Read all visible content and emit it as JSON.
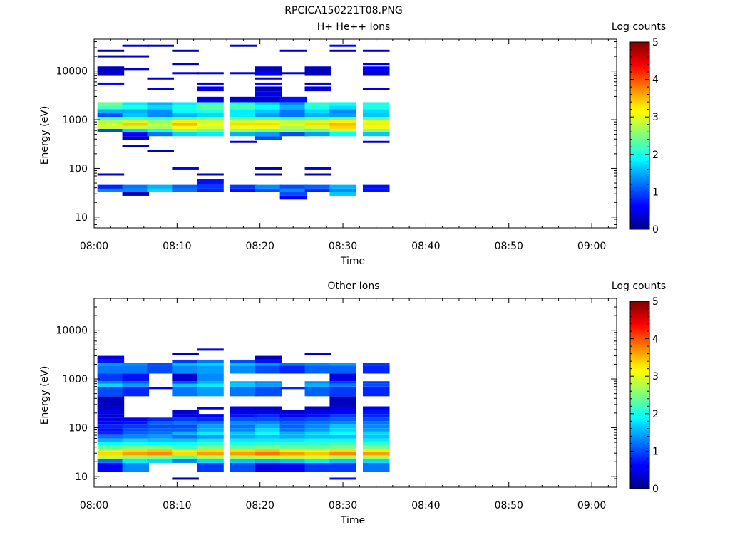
{
  "figure_title": "RPCICA150221T08.PNG",
  "chart_data": [
    {
      "type": "heatmap",
      "title": "H+ He++ Ions",
      "xlabel": "Time",
      "ylabel": "Energy (eV)",
      "y_scale": "log",
      "ylim": [
        6,
        45000
      ],
      "xlim": [
        "08:00",
        "09:03"
      ],
      "x_ticks": [
        "08:00",
        "08:10",
        "08:20",
        "08:30",
        "08:40",
        "08:50",
        "09:00"
      ],
      "y_ticks": [
        "10",
        "100",
        "1000",
        "10000"
      ],
      "colorbar": {
        "label": "Log counts",
        "min": 0,
        "max": 5,
        "ticks": [
          "0",
          "1",
          "2",
          "3",
          "4",
          "5"
        ],
        "colormap": "jet"
      },
      "time_bins": [
        "08:02",
        "08:05",
        "08:08",
        "08:11",
        "08:14",
        "08:18",
        "08:21",
        "08:24",
        "08:27",
        "08:30",
        "08:34"
      ],
      "bin_width_min": 3.2,
      "energy_bins_eV": [
        25,
        30,
        35,
        42,
        50,
        75,
        100,
        230,
        290,
        350,
        420,
        500,
        600,
        700,
        800,
        900,
        1050,
        1250,
        1500,
        1800,
        2100,
        2500,
        3500,
        4200,
        5500,
        7000,
        9000,
        11000,
        14000,
        20000,
        26000,
        33000
      ],
      "values": [
        [
          null,
          null,
          1.3,
          0.8,
          null,
          0.3,
          null,
          null,
          null,
          null,
          null,
          null,
          1.0,
          2.8,
          3.0,
          2.7,
          2.3,
          1.0,
          1.5,
          2.2,
          2.4,
          null,
          null,
          null,
          0.6,
          null,
          0.4,
          0.3,
          null,
          0.3,
          0.3,
          null
        ],
        [
          null,
          0.3,
          1.3,
          1.2,
          null,
          null,
          null,
          null,
          0.3,
          null,
          0.4,
          0.6,
          1.7,
          2.8,
          3.4,
          2.9,
          2.3,
          1.6,
          1.5,
          2.0,
          1.8,
          null,
          null,
          null,
          null,
          null,
          null,
          0.4,
          null,
          0.4,
          null,
          0.4
        ],
        [
          null,
          null,
          1.7,
          1.5,
          null,
          null,
          null,
          0.3,
          null,
          null,
          null,
          1.2,
          2.0,
          2.7,
          2.8,
          2.6,
          2.2,
          1.3,
          1.3,
          1.7,
          1.5,
          null,
          null,
          0.5,
          null,
          0.4,
          null,
          null,
          null,
          null,
          null,
          0.3
        ],
        [
          null,
          null,
          1.2,
          1.1,
          null,
          null,
          0.6,
          null,
          null,
          null,
          null,
          1.7,
          2.6,
          3.1,
          3.5,
          3.2,
          2.3,
          1.5,
          1.9,
          2.0,
          1.8,
          null,
          null,
          null,
          null,
          null,
          0.4,
          null,
          0.3,
          null,
          0.3,
          null
        ],
        [
          null,
          null,
          0.8,
          0.9,
          0.7,
          0.3,
          null,
          null,
          null,
          null,
          null,
          1.8,
          2.4,
          2.9,
          3.0,
          2.9,
          2.5,
          1.7,
          2.0,
          2.3,
          2.2,
          0.5,
          null,
          0.5,
          0.4,
          null,
          0.4,
          null,
          null,
          null,
          null,
          null
        ],
        [
          null,
          null,
          0.7,
          0.9,
          null,
          null,
          null,
          null,
          null,
          0.4,
          null,
          1.5,
          2.6,
          3.0,
          3.3,
          2.9,
          2.4,
          1.8,
          1.8,
          2.2,
          2.1,
          0.4,
          null,
          null,
          null,
          null,
          0.4,
          null,
          null,
          null,
          null,
          0.3
        ],
        [
          null,
          null,
          1.0,
          1.3,
          null,
          0.3,
          0.3,
          null,
          null,
          null,
          1.0,
          1.4,
          2.4,
          3.0,
          3.3,
          3.0,
          2.3,
          1.4,
          1.6,
          1.9,
          1.7,
          0.4,
          0.5,
          0.3,
          0.6,
          0.4,
          0.6,
          0.3,
          null,
          null,
          null,
          null
        ],
        [
          0.6,
          1.0,
          1.3,
          1.0,
          null,
          null,
          null,
          null,
          null,
          null,
          null,
          1.0,
          2.5,
          2.7,
          3.0,
          2.8,
          2.2,
          1.2,
          1.2,
          1.5,
          1.3,
          0.7,
          null,
          null,
          null,
          null,
          0.4,
          null,
          null,
          null,
          0.4,
          null
        ],
        [
          null,
          null,
          0.8,
          1.1,
          null,
          0.3,
          0.5,
          null,
          null,
          null,
          null,
          1.4,
          2.3,
          2.9,
          3.3,
          2.9,
          2.3,
          1.5,
          1.7,
          2.0,
          2.1,
          null,
          null,
          0.4,
          0.3,
          null,
          0.3,
          0.3,
          null,
          null,
          null,
          null
        ],
        [
          null,
          1.6,
          1.3,
          1.5,
          null,
          null,
          null,
          null,
          null,
          null,
          null,
          1.9,
          2.8,
          3.3,
          3.5,
          3.2,
          2.4,
          1.4,
          1.3,
          1.7,
          1.9,
          null,
          null,
          null,
          null,
          null,
          null,
          null,
          null,
          null,
          0.3,
          0.6
        ],
        [
          null,
          null,
          0.7,
          0.7,
          null,
          null,
          null,
          null,
          null,
          0.4,
          null,
          1.6,
          2.6,
          3.0,
          3.2,
          3.0,
          2.3,
          1.6,
          1.7,
          2.0,
          2.0,
          null,
          null,
          0.4,
          null,
          null,
          0.4,
          0.6,
          0.5,
          null,
          0.4,
          null
        ]
      ]
    },
    {
      "type": "heatmap",
      "title": "Other Ions",
      "xlabel": "Time",
      "ylabel": "Energy (eV)",
      "y_scale": "log",
      "ylim": [
        6,
        45000
      ],
      "xlim": [
        "08:00",
        "09:03"
      ],
      "x_ticks": [
        "08:00",
        "08:10",
        "08:20",
        "08:30",
        "08:40",
        "08:50",
        "09:00"
      ],
      "y_ticks": [
        "10",
        "100",
        "1000",
        "10000"
      ],
      "colorbar": {
        "label": "Log counts",
        "min": 0,
        "max": 5,
        "ticks": [
          "0",
          "1",
          "2",
          "3",
          "4",
          "5"
        ],
        "colormap": "jet"
      },
      "time_bins": [
        "08:02",
        "08:05",
        "08:08",
        "08:11",
        "08:14",
        "08:18",
        "08:21",
        "08:24",
        "08:27",
        "08:30",
        "08:34"
      ],
      "bin_width_min": 3.2,
      "energy_bins_eV": [
        9,
        17,
        21,
        25,
        29,
        34,
        40,
        47,
        55,
        65,
        77,
        90,
        106,
        125,
        148,
        175,
        210,
        250,
        300,
        650,
        750,
        850,
        950,
        1750,
        2000,
        2300,
        2700,
        3300,
        4000
      ],
      "values": [
        [
          null,
          0.6,
          1.2,
          2.8,
          3.3,
          2.9,
          2.4,
          1.9,
          1.5,
          1.2,
          0.8,
          0.7,
          0.8,
          0.6,
          0.5,
          0.4,
          0.5,
          0.4,
          0.3,
          1.0,
          1.7,
          1.3,
          0.9,
          1.2,
          1.4,
          0.7,
          0.5,
          null,
          null
        ],
        [
          null,
          1.3,
          1.8,
          2.6,
          3.6,
          3.3,
          2.5,
          2.0,
          1.7,
          1.3,
          1.1,
          1.0,
          0.9,
          0.7,
          0.6,
          null,
          null,
          null,
          null,
          0.8,
          1.4,
          1.1,
          0.7,
          1.2,
          1.3,
          null,
          null,
          null,
          null
        ],
        [
          null,
          null,
          1.7,
          2.5,
          3.7,
          3.4,
          2.5,
          1.9,
          1.6,
          1.4,
          1.2,
          1.1,
          1.0,
          1.1,
          0.8,
          null,
          null,
          null,
          null,
          0.6,
          null,
          null,
          null,
          1.0,
          1.0,
          null,
          null,
          null,
          null
        ],
        [
          0.2,
          null,
          1.3,
          2.3,
          3.3,
          3.0,
          2.2,
          1.9,
          1.6,
          1.2,
          1.5,
          1.1,
          1.0,
          1.2,
          0.9,
          0.5,
          0.4,
          null,
          null,
          1.2,
          1.6,
          1.0,
          0.4,
          1.3,
          1.6,
          0.9,
          null,
          0.3,
          null
        ],
        [
          null,
          0.9,
          1.7,
          2.7,
          3.6,
          3.3,
          2.5,
          2.1,
          1.8,
          1.4,
          1.8,
          1.5,
          1.4,
          1.2,
          0.8,
          0.6,
          null,
          0.5,
          null,
          1.4,
          1.8,
          1.5,
          1.3,
          1.4,
          1.7,
          1.2,
          null,
          null,
          0.4
        ],
        [
          null,
          1.0,
          1.6,
          2.7,
          3.6,
          3.3,
          2.4,
          2.0,
          1.8,
          1.5,
          1.6,
          1.3,
          1.2,
          1.3,
          1.0,
          0.7,
          0.5,
          0.5,
          null,
          1.2,
          1.6,
          1.5,
          null,
          1.3,
          1.6,
          1.0,
          null,
          null,
          null
        ],
        [
          null,
          0.5,
          1.5,
          2.8,
          3.8,
          3.4,
          2.5,
          2.1,
          1.8,
          1.6,
          1.9,
          1.7,
          1.5,
          1.3,
          1.0,
          0.8,
          0.5,
          0.4,
          null,
          1.0,
          1.4,
          1.3,
          null,
          1.0,
          1.4,
          0.7,
          0.3,
          null,
          null
        ],
        [
          null,
          0.6,
          1.6,
          2.8,
          3.6,
          3.2,
          2.4,
          2.1,
          1.8,
          1.5,
          1.5,
          1.2,
          1.1,
          1.1,
          0.9,
          0.6,
          0.4,
          null,
          null,
          0.8,
          null,
          null,
          null,
          0.8,
          1.2,
          null,
          null,
          null,
          null
        ],
        [
          null,
          0.9,
          1.8,
          2.9,
          3.4,
          3.0,
          2.4,
          2.1,
          1.9,
          1.6,
          1.7,
          1.4,
          1.3,
          1.2,
          1.0,
          0.7,
          0.5,
          0.4,
          null,
          1.1,
          1.5,
          1.3,
          null,
          1.1,
          1.3,
          null,
          null,
          0.4,
          null
        ],
        [
          0.7,
          0.9,
          1.6,
          2.7,
          3.7,
          3.3,
          2.5,
          2.2,
          1.9,
          1.6,
          1.9,
          1.7,
          1.6,
          1.3,
          1.1,
          0.9,
          0.6,
          0.5,
          0.3,
          0.9,
          1.2,
          0.9,
          0.5,
          1.1,
          1.4,
          null,
          null,
          null,
          null
        ],
        [
          null,
          1.2,
          1.7,
          2.7,
          3.6,
          3.2,
          2.5,
          2.1,
          1.8,
          1.6,
          1.7,
          1.4,
          1.3,
          1.2,
          1.0,
          0.8,
          0.7,
          0.6,
          null,
          0.8,
          1.0,
          0.9,
          null,
          0.8,
          0.9,
          null,
          null,
          null,
          null
        ]
      ]
    }
  ]
}
